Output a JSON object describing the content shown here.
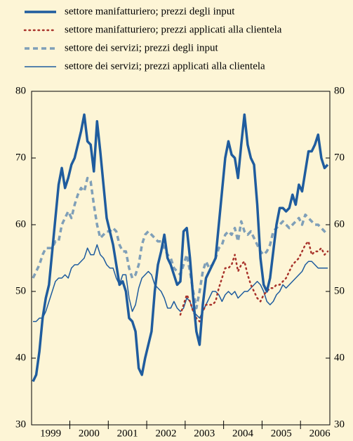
{
  "chart_data": {
    "type": "line",
    "categories": [
      null,
      null,
      null,
      null,
      null,
      null,
      "1999",
      null,
      null,
      null,
      null,
      null,
      null,
      null,
      null,
      null,
      null,
      null,
      "2000",
      null,
      null,
      null,
      null,
      null,
      null,
      null,
      null,
      null,
      null,
      null,
      "2001",
      null,
      null,
      null,
      null,
      null,
      null,
      null,
      null,
      null,
      null,
      null,
      "2002",
      null,
      null,
      null,
      null,
      null,
      null,
      null,
      null,
      null,
      null,
      null,
      "2003",
      null,
      null,
      null,
      null,
      null,
      null,
      null,
      null,
      null,
      null,
      null,
      "2004",
      null,
      null,
      null,
      null,
      null,
      null,
      null,
      null,
      null,
      null,
      null,
      "2005",
      null,
      null,
      null,
      null,
      null,
      null,
      null,
      null,
      null,
      null,
      null,
      "2006",
      null,
      null
    ],
    "ylim": [
      30,
      80
    ],
    "yticks": [
      30,
      40,
      50,
      60,
      70,
      80
    ],
    "y2lim": [
      30,
      80
    ],
    "y2ticks": [
      30,
      40,
      50,
      60,
      70,
      80
    ],
    "series": [
      {
        "name": "settore manifatturiero; prezzi degli input",
        "color": "#1f5c9e",
        "style": "solid",
        "width": 3.5,
        "values": [
          36.5,
          37.5,
          41,
          46,
          49,
          51,
          56,
          61,
          66,
          68.5,
          65.5,
          67,
          69,
          70,
          72,
          74,
          76.5,
          72.5,
          72,
          68,
          75.5,
          71,
          66,
          61,
          59,
          57,
          54,
          51,
          51.5,
          50,
          46,
          45.5,
          44,
          38.5,
          37.5,
          40,
          42,
          44,
          50,
          54,
          56,
          58.5,
          55,
          54,
          52.5,
          51,
          51.5,
          59,
          59.5,
          55,
          49,
          44,
          42,
          48,
          52,
          53,
          54,
          55,
          60,
          65,
          70,
          72.5,
          70.5,
          70,
          67,
          72,
          76.5,
          72,
          70,
          69,
          63,
          55,
          51,
          50,
          52,
          56,
          60,
          62.5,
          62.5,
          62,
          62.5,
          64.5,
          63,
          66,
          65,
          68,
          71,
          71,
          72,
          73.5,
          70,
          68.5,
          69
        ]
      },
      {
        "name": "settore manifatturiero; prezzi applicati alla clientela",
        "color": "#a8322a",
        "style": "dotted",
        "width": 2.5,
        "values": [
          null,
          null,
          null,
          null,
          null,
          null,
          null,
          null,
          null,
          null,
          null,
          null,
          null,
          null,
          null,
          null,
          null,
          null,
          null,
          null,
          null,
          null,
          null,
          null,
          null,
          null,
          null,
          null,
          null,
          null,
          null,
          null,
          null,
          null,
          null,
          null,
          null,
          null,
          null,
          null,
          null,
          null,
          null,
          null,
          null,
          null,
          46.5,
          48,
          49.5,
          48.5,
          47,
          46,
          45.5,
          47,
          48,
          48,
          48,
          48.5,
          50.5,
          52,
          53.5,
          53.5,
          54,
          55.5,
          53,
          54,
          54.5,
          52.5,
          51,
          50,
          49,
          48.5,
          49.5,
          50,
          50.5,
          50.5,
          51,
          51,
          51.5,
          52,
          53,
          54,
          54.5,
          55,
          56,
          57,
          57.5,
          55.5,
          56,
          56,
          56.5,
          55.5,
          56
        ]
      },
      {
        "name": "settore dei servizi; prezzi degli input",
        "color": "#7f9fb8",
        "style": "dashed",
        "width": 3.5,
        "values": [
          52,
          53,
          54,
          55.5,
          56.5,
          56.5,
          56.5,
          57.5,
          57.5,
          60,
          61,
          62,
          61,
          63,
          64.5,
          65.5,
          65,
          67,
          66.5,
          63,
          60,
          58,
          58.5,
          59,
          59,
          59.5,
          59,
          57,
          56,
          56,
          53.5,
          52,
          52.5,
          54,
          57,
          58.5,
          59,
          58.5,
          58,
          57.5,
          57.5,
          56.5,
          55.5,
          55,
          53.5,
          53,
          52.5,
          54,
          55.5,
          53,
          50,
          47.5,
          50,
          53,
          54.5,
          53.5,
          54,
          55,
          56.5,
          57,
          58.5,
          59,
          58.5,
          59.5,
          57.5,
          60.5,
          59,
          58.5,
          59,
          58,
          57,
          56,
          55.5,
          56,
          57,
          59,
          59.5,
          60,
          60.5,
          60,
          59.5,
          60,
          60.5,
          61,
          60,
          61.5,
          61,
          60.5,
          60,
          60,
          59.5,
          59,
          58.5
        ]
      },
      {
        "name": "settore dei servizi; prezzi applicati alla clientela",
        "color": "#1f5c9e",
        "style": "solid",
        "width": 1.5,
        "values": [
          45.5,
          45.5,
          46,
          46,
          47,
          48.5,
          50,
          51.5,
          52,
          52,
          52.5,
          52,
          53.5,
          54,
          54,
          54.5,
          55,
          56.5,
          55.5,
          55.5,
          57,
          55.5,
          55,
          54,
          53.5,
          53.5,
          52,
          51,
          52.5,
          52.5,
          49,
          47,
          48,
          50.5,
          52,
          52.5,
          53,
          52.5,
          51,
          50.5,
          50,
          49,
          47.5,
          47.5,
          48.5,
          47.5,
          47,
          47.5,
          49,
          48.5,
          47,
          46.5,
          46,
          47,
          48,
          49,
          50,
          50,
          49.5,
          48.5,
          49.5,
          50,
          49.5,
          50,
          49,
          49.5,
          50,
          50,
          50.5,
          51,
          51.5,
          51,
          50,
          48.5,
          48,
          48.5,
          49.5,
          50,
          51,
          50.5,
          51,
          51.5,
          52,
          52.5,
          53,
          54,
          54.5,
          54.5,
          54,
          53.5,
          53.5,
          53.5,
          53.5
        ]
      }
    ]
  }
}
